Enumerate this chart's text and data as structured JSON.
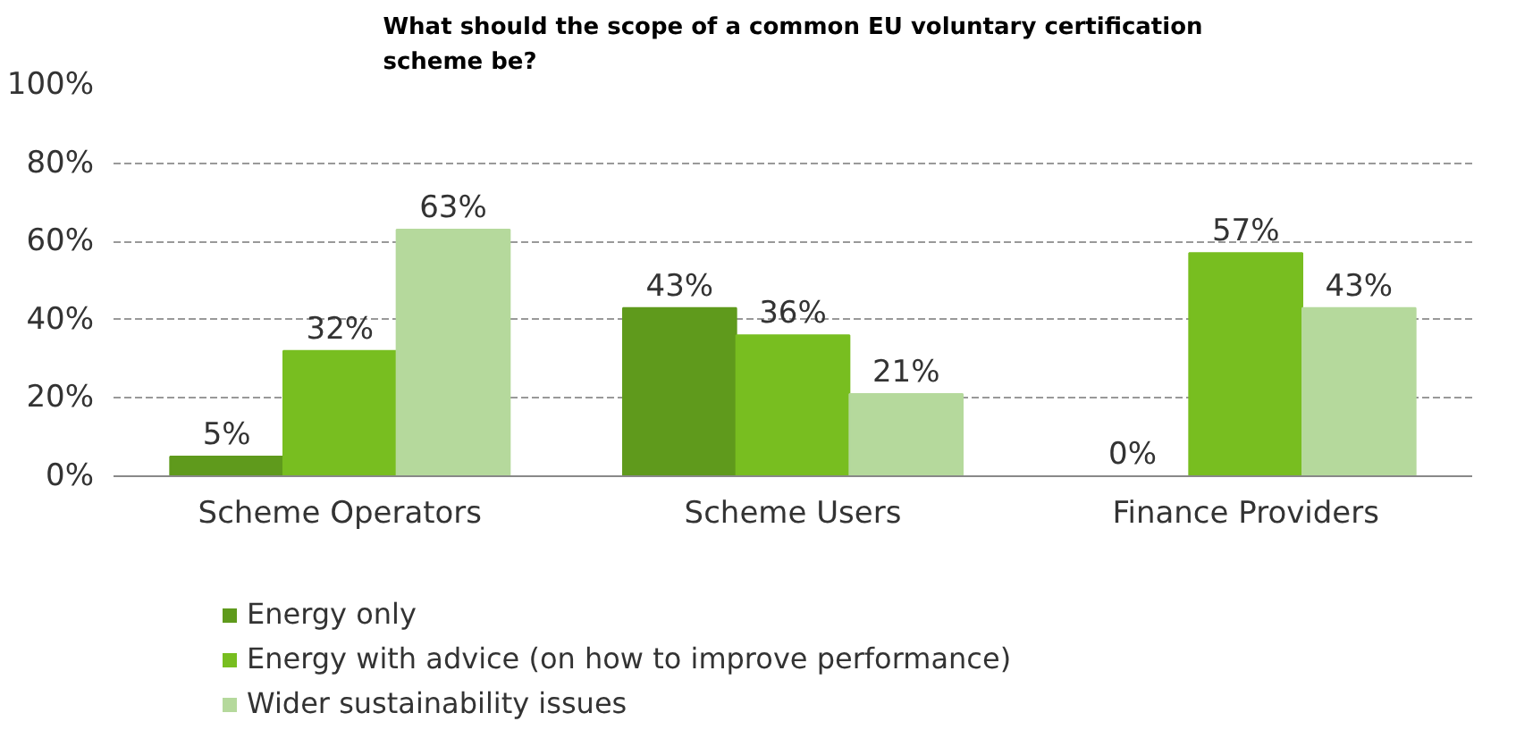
{
  "chart_data": {
    "type": "bar",
    "title": "What should the scope of a common EU voluntary certification\nscheme be?",
    "categories": [
      "Scheme Operators",
      "Scheme Users",
      "Finance Providers"
    ],
    "series": [
      {
        "name": "Energy only",
        "color": "#5f9a1c",
        "values": [
          5,
          43,
          0
        ],
        "value_labels": [
          "5%",
          "43%",
          "0%"
        ]
      },
      {
        "name": "Energy with advice (on how to improve performance)",
        "color": "#78be20",
        "values": [
          32,
          36,
          57
        ],
        "value_labels": [
          "32%",
          "36%",
          "57%"
        ]
      },
      {
        "name": "Wider sustainability issues",
        "color": "#b5d99c",
        "values": [
          63,
          21,
          43
        ],
        "value_labels": [
          "63%",
          "21%",
          "43%"
        ]
      }
    ],
    "ylim": [
      0,
      100
    ],
    "yticks": [
      {
        "value": 0,
        "label": "0%"
      },
      {
        "value": 20,
        "label": "20%"
      },
      {
        "value": 40,
        "label": "40%"
      },
      {
        "value": 60,
        "label": "60%"
      },
      {
        "value": 80,
        "label": "80%"
      },
      {
        "value": 100,
        "label": "100%"
      }
    ],
    "grid": "y",
    "legend": "bottom"
  }
}
